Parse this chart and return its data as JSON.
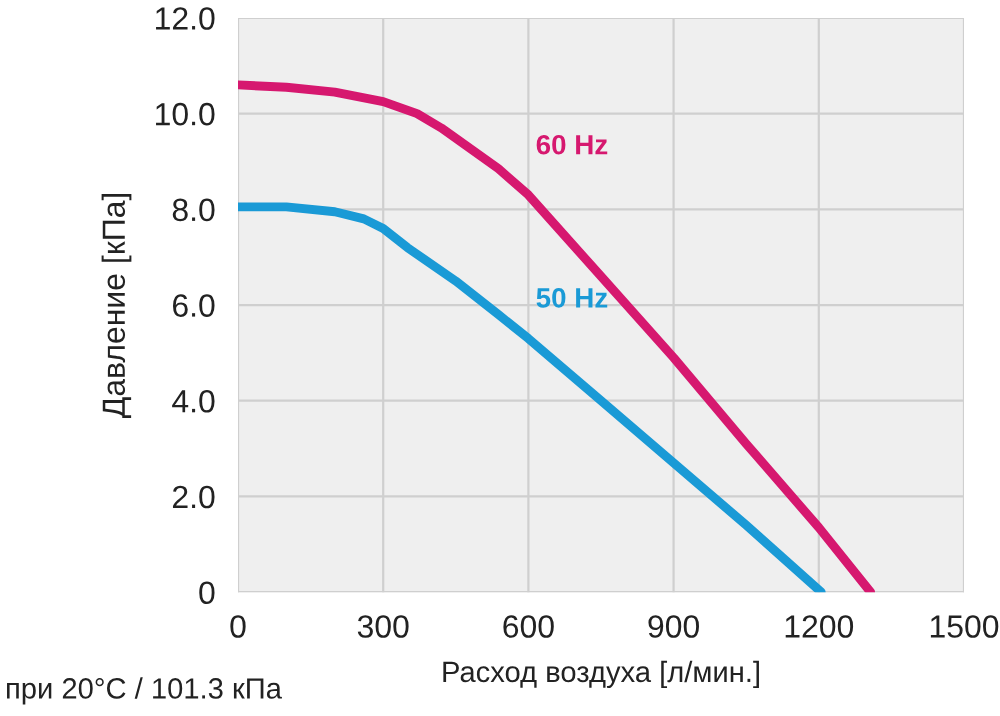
{
  "chart_data": {
    "type": "line",
    "xlabel": "Расход воздуха [л/мин.]",
    "ylabel": "Давление [кПа]",
    "series": [
      {
        "name": "60 Hz",
        "color": "#d6186f",
        "x": [
          0,
          100,
          200,
          300,
          370,
          420,
          538,
          600,
          750,
          900,
          1050,
          1200,
          1307
        ],
        "values": [
          10.6,
          10.55,
          10.45,
          10.25,
          10.0,
          9.7,
          8.85,
          8.3,
          6.6,
          4.9,
          3.1,
          1.35,
          0
        ]
      },
      {
        "name": "50 Hz",
        "color": "#1a9ad6",
        "x": [
          0,
          100,
          200,
          260,
          300,
          350,
          450,
          538,
          600,
          750,
          900,
          1050,
          1205
        ],
        "values": [
          8.05,
          8.05,
          7.95,
          7.8,
          7.6,
          7.2,
          6.5,
          5.8,
          5.3,
          4.0,
          2.7,
          1.4,
          0
        ]
      }
    ],
    "xlim": [
      0,
      1500
    ],
    "xticks": [
      0,
      300,
      600,
      900,
      1200,
      1500
    ],
    "ylim": [
      0,
      12
    ],
    "yticks": [
      {
        "value": 0,
        "label": "0"
      },
      {
        "value": 2,
        "label": "2.0"
      },
      {
        "value": 4,
        "label": "4.0"
      },
      {
        "value": 6,
        "label": "6.0"
      },
      {
        "value": 8,
        "label": "8.0"
      },
      {
        "value": 10,
        "label": "10.0"
      },
      {
        "value": 12,
        "label": "12.0"
      }
    ],
    "grid": true,
    "legend": false,
    "line_style": "solid",
    "marker": "none",
    "annotations": [
      "при 20°C / 101.3 кПа"
    ]
  }
}
